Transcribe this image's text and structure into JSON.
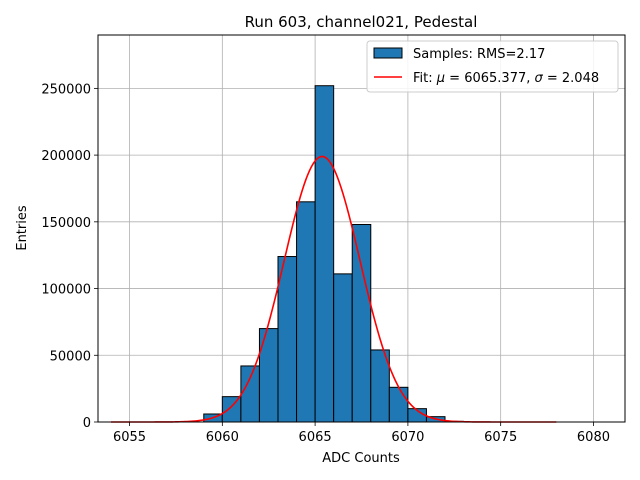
{
  "chart_data": {
    "type": "bar",
    "title": "Run 603, channel021, Pedestal",
    "xlabel": "ADC Counts",
    "ylabel": "Entries",
    "xlim": [
      6053.3,
      6081.7
    ],
    "ylim": [
      0,
      290000
    ],
    "xticks": [
      6055,
      6060,
      6065,
      6070,
      6075,
      6080
    ],
    "yticks": [
      0,
      50000,
      100000,
      150000,
      200000,
      250000
    ],
    "grid": true,
    "legend_position": "top-right",
    "histogram": {
      "name": "Samples: RMS=2.17",
      "bin_width": 1,
      "bin_edges_start": 6059,
      "counts": [
        6000,
        19000,
        42000,
        70000,
        124000,
        165000,
        252000,
        111000,
        148000,
        54000,
        26000,
        10000,
        4000,
        500
      ],
      "color": "#1f77b4",
      "edge_color": "#000000"
    },
    "fit": {
      "name": "Fit: μ = 6065.377, σ = 2.048",
      "mu": 6065.377,
      "sigma": 2.048,
      "amplitude": 199000,
      "x_range": [
        6054,
        6078
      ],
      "color": "#ff0000"
    },
    "legend": {
      "entries": [
        {
          "label_prefix": "Samples: RMS=2.17",
          "kind": "patch"
        },
        {
          "label_prefix": "Fit: ",
          "mu_symbol": "μ",
          "mu_text": " = 6065.377, ",
          "sigma_symbol": "σ",
          "sigma_text": " = 2.048",
          "kind": "line"
        }
      ]
    }
  }
}
